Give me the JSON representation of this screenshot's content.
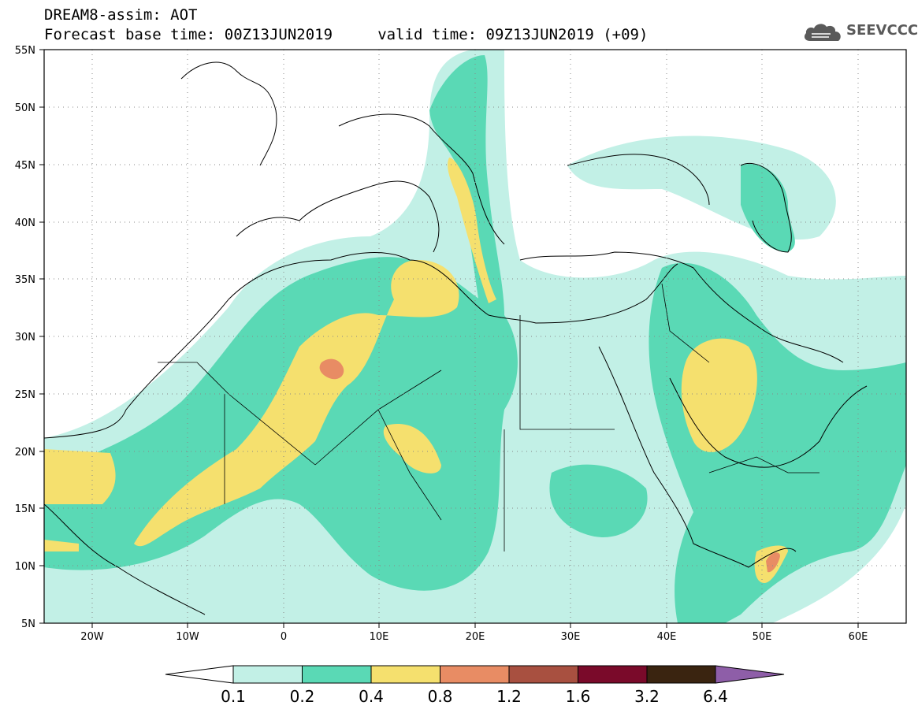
{
  "header": {
    "line1": "DREAM8-assim: AOT",
    "line2": "Forecast base time: 00Z13JUN2019     valid time: 09Z13JUN2019 (+09)"
  },
  "logo": {
    "text": "SEEVCCC",
    "icon": "cloud-icon"
  },
  "map": {
    "lon_range": [
      -25,
      65
    ],
    "lat_range": [
      5,
      55
    ],
    "lat_ticks": [
      "55N",
      "50N",
      "45N",
      "40N",
      "35N",
      "30N",
      "25N",
      "20N",
      "15N",
      "10N",
      "5N"
    ],
    "lon_ticks": [
      "20W",
      "10W",
      "0",
      "10E",
      "20E",
      "30E",
      "40E",
      "50E",
      "60E"
    ],
    "grid": "dotted"
  },
  "colorbar": {
    "labels": [
      "0.1",
      "0.2",
      "0.4",
      "0.8",
      "1.2",
      "1.6",
      "3.2",
      "6.4"
    ],
    "colors": [
      "#ffffff",
      "#c2f0e6",
      "#5ad9b5",
      "#f5e06e",
      "#e88c64",
      "#a85040",
      "#7a0a2a",
      "#3a2410",
      "#8e5ea8"
    ]
  }
}
